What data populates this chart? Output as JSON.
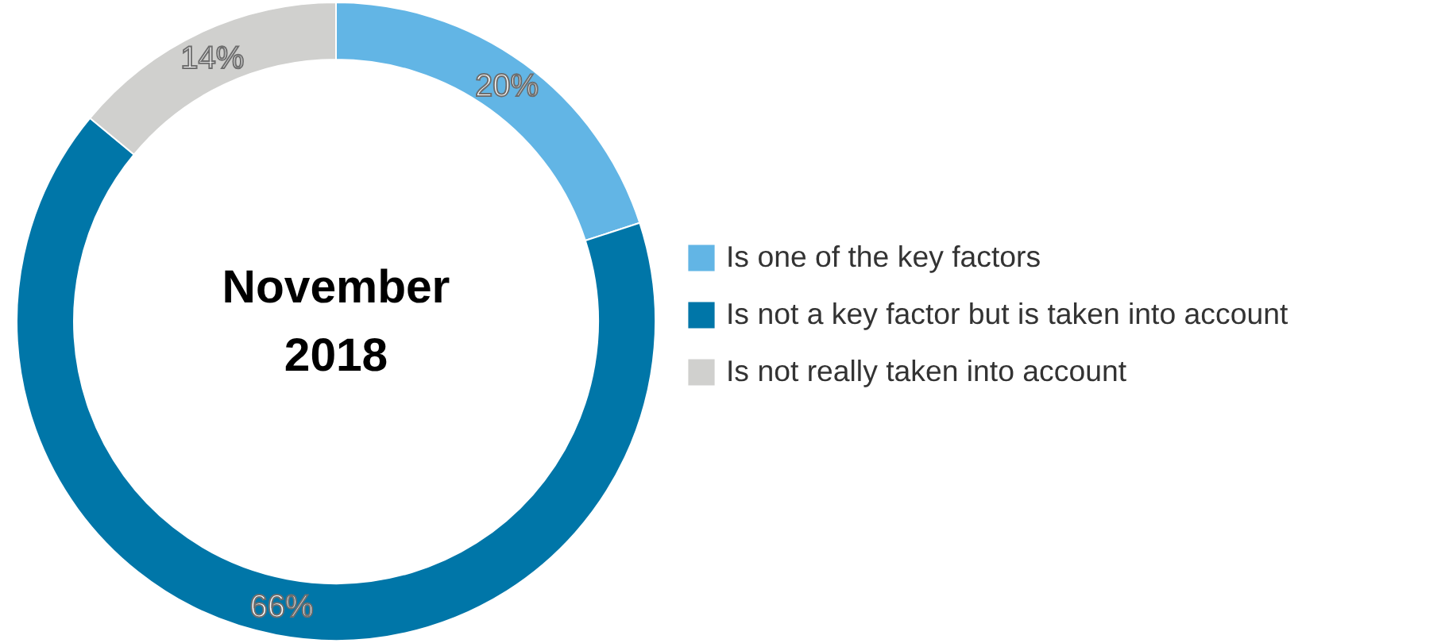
{
  "chart_data": {
    "type": "donut",
    "title": "November\n2018",
    "categories": [
      "Is one of the key factors",
      "Is not a key factor but is taken into account",
      "Is not really taken into account"
    ],
    "values": [
      20,
      66,
      14
    ],
    "colors": [
      "#62b5e5",
      "#0076a8",
      "#d0d0ce"
    ],
    "value_labels": [
      "20%",
      "66%",
      "14%"
    ],
    "legend": "right"
  }
}
